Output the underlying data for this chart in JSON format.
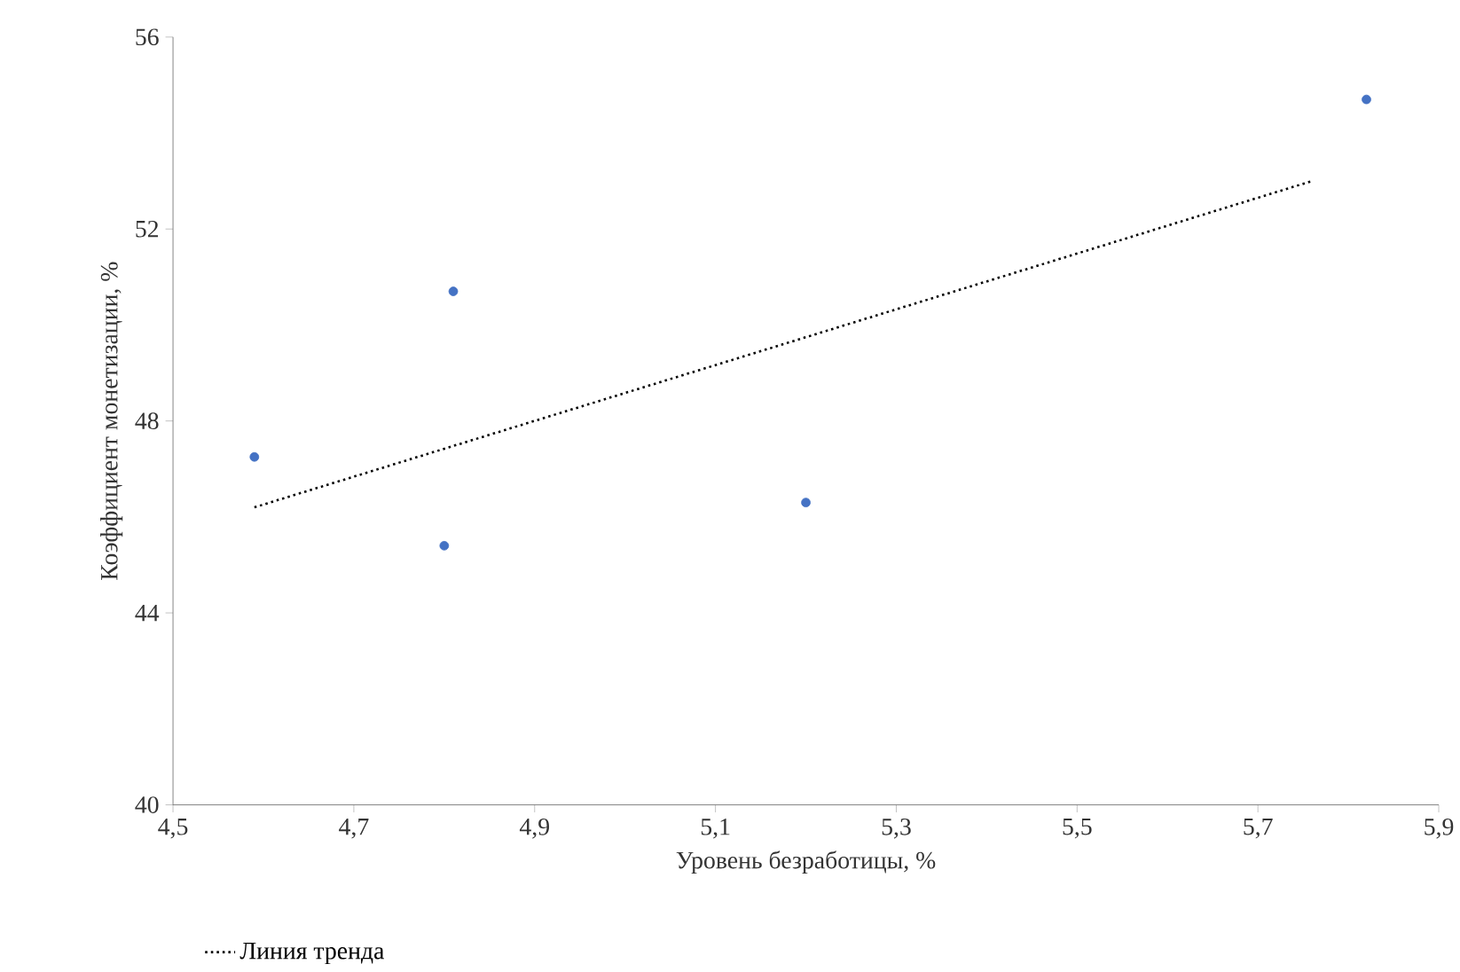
{
  "chart_data": {
    "type": "scatter",
    "xlabel": "Уровень безработицы, %",
    "ylabel": "Коэффициент монетизации, %",
    "xlim": [
      4.5,
      5.9
    ],
    "ylim": [
      40,
      56
    ],
    "xticks": [
      {
        "value": 4.5,
        "label": "4,5"
      },
      {
        "value": 4.7,
        "label": "4,7"
      },
      {
        "value": 4.9,
        "label": "4,9"
      },
      {
        "value": 5.1,
        "label": "5,1"
      },
      {
        "value": 5.3,
        "label": "5,3"
      },
      {
        "value": 5.5,
        "label": "5,5"
      },
      {
        "value": 5.7,
        "label": "5,7"
      },
      {
        "value": 5.9,
        "label": "5,9"
      }
    ],
    "yticks": [
      40,
      44,
      48,
      52,
      56
    ],
    "grid": false,
    "legend": "bottom left",
    "marker": "circle",
    "series": [
      {
        "color": "#4472c4",
        "x": [
          4.59,
          4.8,
          4.81,
          5.2,
          5.82
        ],
        "values": [
          47.25,
          45.4,
          50.7,
          46.3,
          54.7
        ]
      },
      {
        "type": "line",
        "name": "Линия тренда",
        "color": "#000000",
        "line_style": "dotted",
        "marker": "none",
        "x": [
          4.59,
          5.76
        ],
        "values": [
          46.2,
          53.0
        ]
      }
    ]
  }
}
